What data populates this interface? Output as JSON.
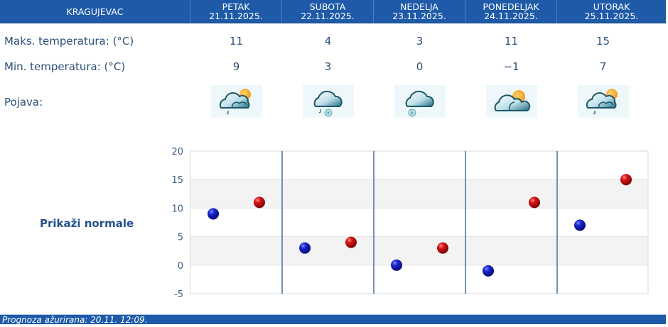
{
  "header": {
    "city": "KRAGUJEVAC",
    "days": [
      {
        "name": "PETAK",
        "date": "21.11.2025."
      },
      {
        "name": "SUBOTA",
        "date": "22.11.2025."
      },
      {
        "name": "NEDELJA",
        "date": "23.11.2025."
      },
      {
        "name": "PONEDELJAK",
        "date": "24.11.2025."
      },
      {
        "name": "UTORAK",
        "date": "25.11.2025."
      }
    ]
  },
  "rows": {
    "max_label": "Maks. temperatura: (°C)",
    "min_label": "Min. temperatura: (°C)",
    "phenomenon_label": "Pojava:",
    "max_values": [
      "11",
      "4",
      "3",
      "11",
      "15"
    ],
    "min_values": [
      "9",
      "3",
      "0",
      "−1",
      "7"
    ],
    "icons": [
      "partly-cloudy-light-rain-icon",
      "cloudy-rain-snow-icon",
      "cloudy-snow-icon",
      "partly-cloudy-icon",
      "partly-cloudy-light-rain-icon"
    ]
  },
  "normals_link": "Prikaži normale",
  "footer": {
    "text": "Prognoza ažurirana:  20.11. 12:09."
  },
  "colors": {
    "header_bg": "#1e5aa8",
    "text": "#2c4f78",
    "min_marker": "#0a14b4",
    "max_marker": "#c80a0a",
    "band": "#f3f3f3",
    "divider": "#4a6f99"
  },
  "chart_data": {
    "type": "scatter",
    "title": "",
    "xlabel": "",
    "ylabel": "",
    "categories": [
      "21.11.2025.",
      "22.11.2025.",
      "23.11.2025.",
      "24.11.2025.",
      "25.11.2025."
    ],
    "series": [
      {
        "name": "Min. temperatura",
        "color": "#0a14b4",
        "values": [
          9,
          3,
          0,
          -1,
          7
        ]
      },
      {
        "name": "Maks. temperatura",
        "color": "#c80a0a",
        "values": [
          11,
          4,
          3,
          11,
          15
        ]
      }
    ],
    "ylim": [
      -5,
      20
    ],
    "yticks": [
      20,
      15,
      10,
      5,
      0,
      -5
    ],
    "grid": true,
    "legend": "none"
  }
}
